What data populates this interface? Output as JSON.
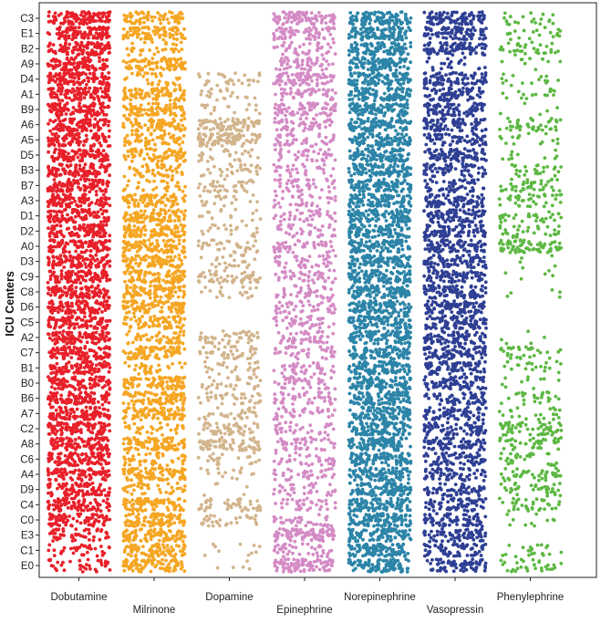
{
  "chart_data": {
    "type": "scatter",
    "subtype": "jitter-strip",
    "title": "",
    "xlabel": "",
    "ylabel": "ICU Centers",
    "grid": false,
    "legend": "none",
    "categories_x": [
      "Dobutamine",
      "Milrinone",
      "Dopamine",
      "Epinephrine",
      "Norepinephrine",
      "Vasopressin",
      "Phenylephrine"
    ],
    "x_label_row": [
      "top",
      "bottom",
      "top",
      "bottom",
      "top",
      "bottom",
      "top"
    ],
    "categories_y": [
      "C3",
      "E1",
      "B2",
      "A9",
      "D4",
      "A1",
      "B9",
      "A6",
      "A5",
      "D5",
      "B3",
      "B7",
      "A3",
      "D1",
      "D2",
      "A0",
      "D3",
      "C9",
      "C8",
      "D6",
      "C5",
      "A2",
      "C7",
      "B1",
      "B0",
      "B6",
      "A7",
      "C2",
      "A8",
      "C6",
      "A4",
      "D9",
      "C4",
      "C0",
      "E3",
      "C1",
      "E0"
    ],
    "series": [
      {
        "drug": "Dobutamine",
        "color": "#e8202a",
        "density": [
          1,
          1,
          1,
          1,
          1,
          1,
          1,
          1,
          1,
          1,
          1,
          1,
          1,
          1,
          1,
          1,
          1,
          1,
          1,
          1,
          1,
          1,
          1,
          1,
          1,
          1,
          1,
          1,
          1,
          1,
          0.9,
          0.85,
          0.85,
          0.8,
          0.5,
          0.35,
          0.35
        ]
      },
      {
        "drug": "Milrinone",
        "color": "#f5a623",
        "density": [
          0.7,
          0.85,
          0.3,
          0.8,
          0.3,
          0.85,
          0.9,
          0.8,
          0.6,
          0.85,
          0.5,
          0.3,
          0.85,
          0.95,
          0.95,
          0.95,
          0.9,
          0.95,
          0.95,
          0.95,
          0.7,
          0.5,
          0.85,
          0.3,
          0.95,
          0.95,
          0.85,
          0.3,
          0.95,
          0.45,
          0.9,
          0.4,
          0.9,
          0.95,
          0.95,
          0.85,
          0.9
        ]
      },
      {
        "drug": "Dopamine",
        "color": "#d2b48c",
        "density": [
          0,
          0,
          0,
          0,
          0.3,
          0.2,
          0.15,
          0.75,
          0.95,
          0.25,
          0.3,
          0.35,
          0.2,
          0.15,
          0.2,
          0.35,
          0.25,
          0.55,
          0.2,
          0,
          0,
          0.45,
          0.4,
          0.25,
          0.3,
          0.35,
          0.3,
          0.5,
          0.7,
          0.2,
          0.15,
          0.05,
          0.5,
          0.3,
          0,
          0.1,
          0.05
        ]
      },
      {
        "drug": "Epinephrine",
        "color": "#d48bc5",
        "density": [
          0.9,
          0.7,
          0.4,
          0.5,
          0.85,
          0.45,
          0.7,
          0.5,
          0.45,
          0.4,
          0.3,
          0.45,
          0.35,
          0.4,
          0.4,
          0.45,
          0.45,
          0.45,
          0.4,
          0.45,
          0.4,
          0.45,
          0.4,
          0.4,
          0.45,
          0.45,
          0.35,
          0.35,
          0.45,
          0.35,
          0.35,
          0.35,
          0.35,
          0.35,
          0.95,
          0.4,
          0.95
        ]
      },
      {
        "drug": "Norepinephrine",
        "color": "#2c85a8",
        "density": [
          1,
          1,
          1,
          1,
          1,
          1,
          1,
          1,
          1,
          1,
          1,
          1,
          1,
          1,
          1,
          1,
          1,
          1,
          1,
          1,
          1,
          1,
          1,
          1,
          1,
          1,
          1,
          1,
          1,
          1,
          1,
          1,
          1,
          1,
          1,
          1,
          1
        ]
      },
      {
        "drug": "Vasopressin",
        "color": "#2e3f94",
        "density": [
          0.95,
          0.85,
          0.85,
          0.2,
          0.85,
          0.8,
          0.85,
          0.8,
          0.6,
          0.85,
          0.6,
          0.55,
          0.85,
          0.85,
          0.85,
          0.8,
          0.8,
          0.75,
          0.85,
          0.95,
          0.9,
          0.8,
          0.85,
          0.8,
          0.85,
          0.6,
          0.75,
          0.7,
          0.7,
          0.7,
          0.6,
          0.6,
          0.65,
          0.7,
          0.75,
          0.7,
          0.7
        ]
      },
      {
        "drug": "Phenylephrine",
        "color": "#5db843",
        "density": [
          0.2,
          0.2,
          0.35,
          0.1,
          0.15,
          0.15,
          0.05,
          0.4,
          0.15,
          0.1,
          0.25,
          0.4,
          0.35,
          0.3,
          0.3,
          0.7,
          0.05,
          0.05,
          0.05,
          0,
          0,
          0.05,
          0.3,
          0.2,
          0.1,
          0.25,
          0.2,
          0.55,
          0.4,
          0.3,
          0.4,
          0.35,
          0.35,
          0.1,
          0,
          0.2,
          0.3
        ]
      }
    ]
  }
}
